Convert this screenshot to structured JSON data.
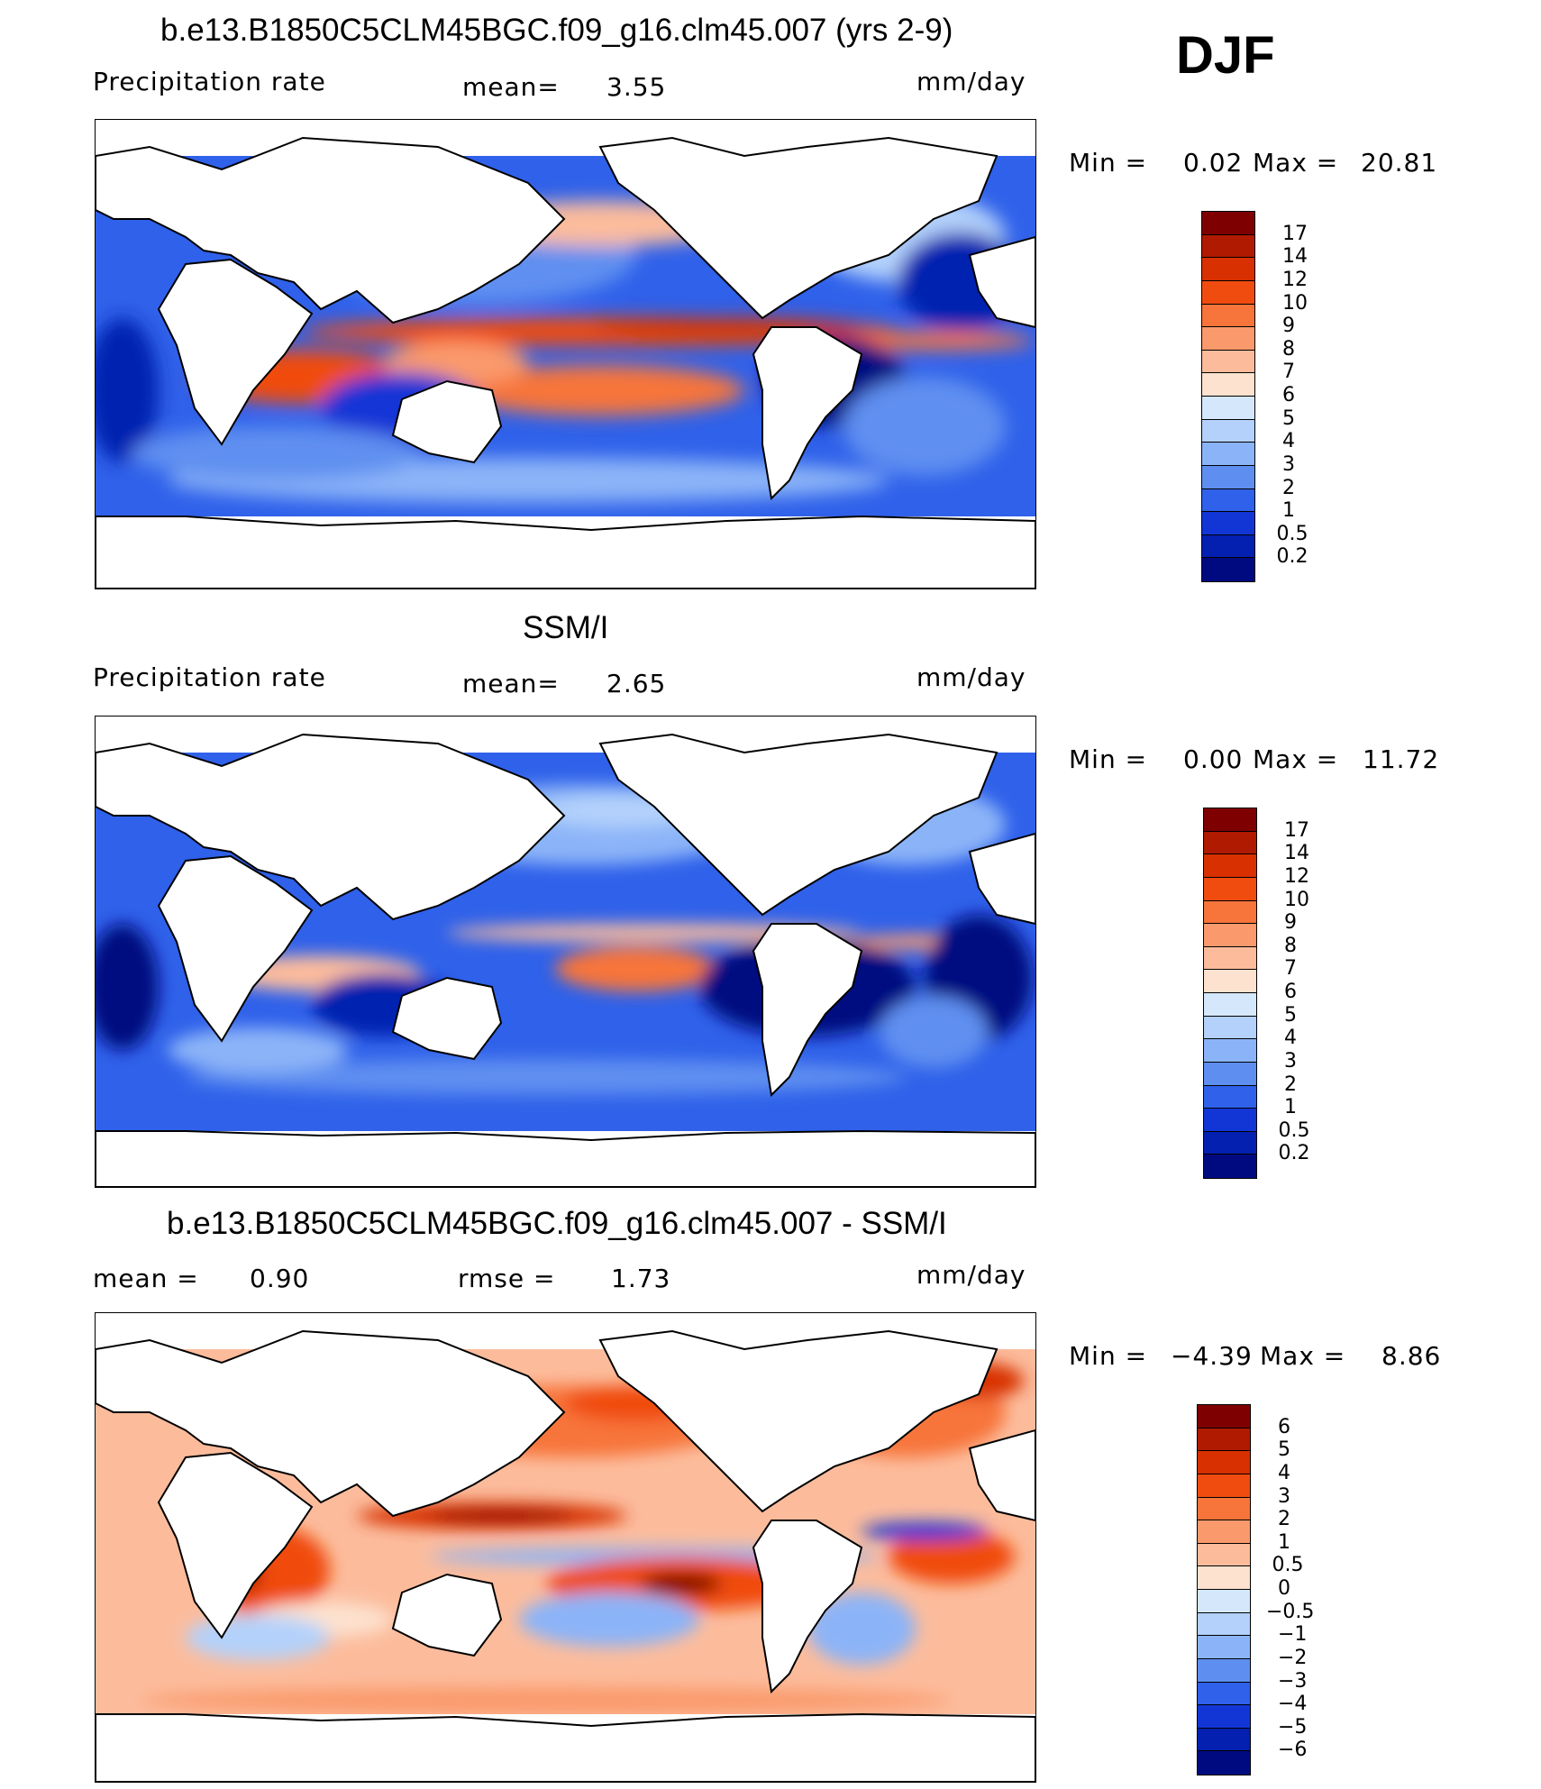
{
  "season": "DJF",
  "chart_data": [
    {
      "type": "heatmap",
      "title": "b.e13.B1850C5CLM45BGC.f09_g16.clm45.007 (yrs 2-9)",
      "variable": "Precipitation rate",
      "mean_label": "mean=",
      "mean": "3.55",
      "units": "mm/day",
      "min_label": "Min =",
      "min": "0.02",
      "max_label": "Max =",
      "max": "20.81",
      "colorbar_ticks": [
        "17",
        "14",
        "12",
        "10",
        "9",
        "8",
        "7",
        "6",
        "5",
        "4",
        "3",
        "2",
        "1",
        "0.5",
        "0.2"
      ],
      "colorbar_colors": [
        "#7f0000",
        "#b01a00",
        "#d83000",
        "#f04c10",
        "#f7743a",
        "#fa9a6c",
        "#fcbc9c",
        "#fde2cf",
        "#d5e8fb",
        "#b3d1fb",
        "#8bb4f8",
        "#5e8ff0",
        "#2f61ea",
        "#1236d6",
        "#0320b0",
        "#000a80"
      ]
    },
    {
      "type": "heatmap",
      "title": "SSM/I",
      "variable": "Precipitation rate",
      "mean_label": "mean=",
      "mean": "2.65",
      "units": "mm/day",
      "min_label": "Min =",
      "min": "0.00",
      "max_label": "Max =",
      "max": "11.72",
      "colorbar_ticks": [
        "17",
        "14",
        "12",
        "10",
        "9",
        "8",
        "7",
        "6",
        "5",
        "4",
        "3",
        "2",
        "1",
        "0.5",
        "0.2"
      ],
      "colorbar_colors": [
        "#7f0000",
        "#b01a00",
        "#d83000",
        "#f04c10",
        "#f7743a",
        "#fa9a6c",
        "#fcbc9c",
        "#fde2cf",
        "#d5e8fb",
        "#b3d1fb",
        "#8bb4f8",
        "#5e8ff0",
        "#2f61ea",
        "#1236d6",
        "#0320b0",
        "#000a80"
      ]
    },
    {
      "type": "heatmap",
      "title": "b.e13.B1850C5CLM45BGC.f09_g16.clm45.007 - SSM/I",
      "mean_label": "mean =",
      "mean": "0.90",
      "rmse_label": "rmse =",
      "rmse": "1.73",
      "units": "mm/day",
      "min_label": "Min =",
      "min": "−4.39",
      "max_label": "Max =",
      "max": "8.86",
      "colorbar_ticks": [
        "6",
        "5",
        "4",
        "3",
        "2",
        "1",
        "0.5",
        "0",
        "−0.5",
        "−1",
        "−2",
        "−3",
        "−4",
        "−5",
        "−6"
      ],
      "colorbar_colors": [
        "#7f0000",
        "#b01a00",
        "#d83000",
        "#f04c10",
        "#f7743a",
        "#fa9a6c",
        "#fcbc9c",
        "#fde2cf",
        "#d5e8fb",
        "#b3d1fb",
        "#8bb4f8",
        "#5e8ff0",
        "#2f61ea",
        "#1236d6",
        "#0320b0",
        "#000a80"
      ]
    }
  ]
}
